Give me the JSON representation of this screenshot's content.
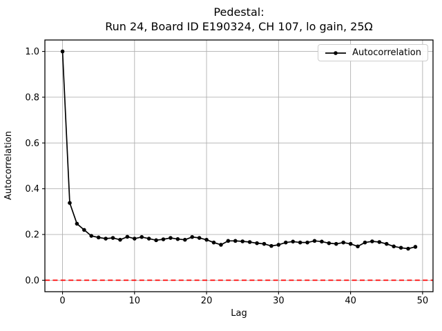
{
  "chart_data": {
    "type": "line",
    "title": "Pedestal: Run 24, Board ID E190324, CH 107, lo gain, 25Ω",
    "title_lines": [
      "Pedestal:",
      "Run 24, Board ID E190324, CH 107, lo gain, 25Ω"
    ],
    "xlabel": "Lag",
    "ylabel": "Autocorrelation",
    "xlim": [
      -2.45,
      51.45
    ],
    "ylim": [
      -0.05,
      1.05
    ],
    "xticks": [
      0,
      10,
      20,
      30,
      40,
      50
    ],
    "xticklabels": [
      "0",
      "10",
      "20",
      "30",
      "40",
      "50"
    ],
    "yticks": [
      0.0,
      0.2,
      0.4,
      0.6,
      0.8,
      1.0
    ],
    "yticklabels": [
      "0.0",
      "0.2",
      "0.4",
      "0.6",
      "0.8",
      "1.0"
    ],
    "grid": true,
    "legend": {
      "position": "upper right",
      "entries": [
        "Autocorrelation"
      ]
    },
    "series": [
      {
        "name": "Autocorrelation",
        "color": "#000000",
        "marker": "dot",
        "x": [
          0,
          1,
          2,
          3,
          4,
          5,
          6,
          7,
          8,
          9,
          10,
          11,
          12,
          13,
          14,
          15,
          16,
          17,
          18,
          19,
          20,
          21,
          22,
          23,
          24,
          25,
          26,
          27,
          28,
          29,
          30,
          31,
          32,
          33,
          34,
          35,
          36,
          37,
          38,
          39,
          40,
          41,
          42,
          43,
          44,
          45,
          46,
          47,
          48,
          49
        ],
        "y": [
          1.0,
          0.338,
          0.247,
          0.22,
          0.194,
          0.187,
          0.182,
          0.185,
          0.177,
          0.19,
          0.182,
          0.189,
          0.182,
          0.175,
          0.179,
          0.185,
          0.18,
          0.177,
          0.189,
          0.185,
          0.177,
          0.165,
          0.155,
          0.172,
          0.172,
          0.17,
          0.167,
          0.162,
          0.159,
          0.15,
          0.155,
          0.165,
          0.169,
          0.165,
          0.165,
          0.172,
          0.169,
          0.162,
          0.159,
          0.165,
          0.159,
          0.148,
          0.165,
          0.17,
          0.167,
          0.159,
          0.148,
          0.142,
          0.138,
          0.146
        ]
      }
    ],
    "reference_lines": [
      {
        "y": 0.0,
        "color": "#ff0000",
        "style": "dashed",
        "name": "zero-line"
      }
    ],
    "colors": {
      "grid": "#b0b0b0",
      "spine": "#000000",
      "background": "#ffffff",
      "line": "#000000",
      "reference": "#ff0000"
    }
  }
}
